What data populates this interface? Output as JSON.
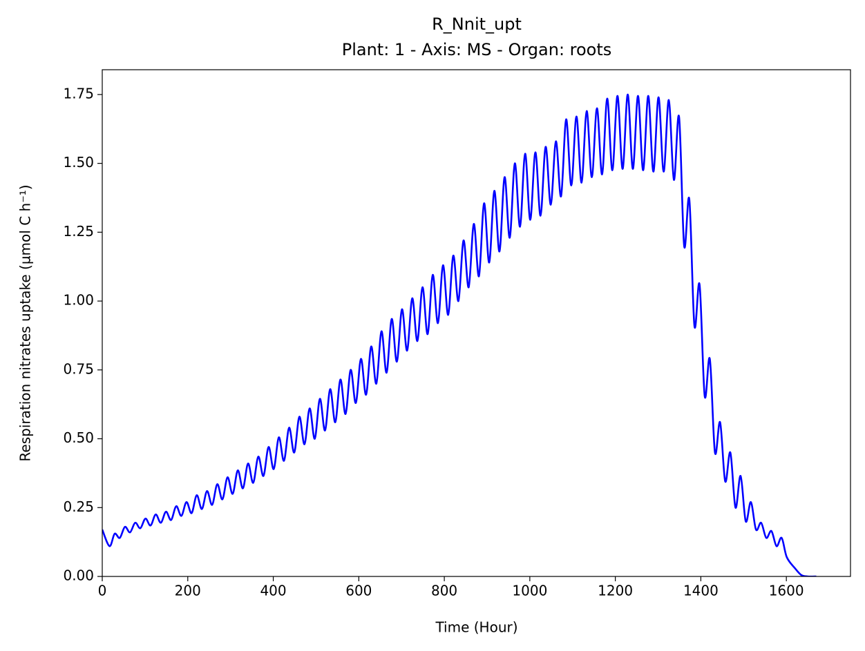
{
  "chart_data": {
    "type": "line",
    "title": "R_Nnit_upt",
    "subtitle": "Plant: 1 - Axis: MS - Organ: roots",
    "x_label": "Time (Hour)",
    "y_label": "Respiration nitrates uptake (µmol C h⁻¹)",
    "xlim": [
      0,
      1750
    ],
    "ylim": [
      0,
      1.84
    ],
    "xticks": [
      0,
      200,
      400,
      600,
      800,
      1000,
      1200,
      1400,
      1600
    ],
    "yticks": [
      {
        "value": 0,
        "label": "0.00"
      },
      {
        "value": 0.25,
        "label": "0.25"
      },
      {
        "value": 0.5,
        "label": "0.50"
      },
      {
        "value": 0.75,
        "label": "0.75"
      },
      {
        "value": 1,
        "label": "1.00"
      },
      {
        "value": 1.25,
        "label": "1.25"
      },
      {
        "value": 1.5,
        "label": "1.50"
      },
      {
        "value": 1.75,
        "label": "1.75"
      }
    ],
    "grid": false,
    "x": [
      0,
      17,
      29,
      41,
      53,
      65,
      77,
      89,
      101,
      113,
      125,
      137,
      149,
      161,
      173,
      185,
      197,
      209,
      221,
      233,
      245,
      257,
      269,
      281,
      293,
      305,
      317,
      329,
      341,
      353,
      365,
      377,
      389,
      401,
      413,
      425,
      437,
      449,
      461,
      473,
      485,
      497,
      509,
      521,
      533,
      545,
      557,
      569,
      581,
      593,
      605,
      617,
      629,
      641,
      653,
      665,
      677,
      689,
      701,
      713,
      725,
      737,
      749,
      761,
      773,
      785,
      797,
      809,
      821,
      833,
      845,
      857,
      869,
      881,
      893,
      905,
      917,
      929,
      941,
      953,
      965,
      977,
      989,
      1001,
      1013,
      1025,
      1037,
      1049,
      1061,
      1073,
      1085,
      1097,
      1109,
      1121,
      1133,
      1145,
      1157,
      1169,
      1181,
      1193,
      1205,
      1217,
      1229,
      1241,
      1253,
      1265,
      1277,
      1289,
      1301,
      1313,
      1325,
      1337,
      1349,
      1361,
      1373,
      1385,
      1397,
      1409,
      1421,
      1433,
      1445,
      1457,
      1469,
      1481,
      1493,
      1505,
      1517,
      1529,
      1541,
      1553,
      1565,
      1577,
      1589,
      1601,
      1620,
      1635,
      1650,
      1670
    ],
    "series": [
      {
        "name": "R_Nnit_upt",
        "color": "#0000ff",
        "values": [
          0.17,
          0.11,
          0.155,
          0.14,
          0.18,
          0.16,
          0.195,
          0.175,
          0.21,
          0.185,
          0.225,
          0.195,
          0.235,
          0.205,
          0.255,
          0.22,
          0.27,
          0.23,
          0.295,
          0.245,
          0.31,
          0.26,
          0.335,
          0.28,
          0.36,
          0.3,
          0.385,
          0.32,
          0.41,
          0.34,
          0.435,
          0.365,
          0.47,
          0.39,
          0.505,
          0.42,
          0.54,
          0.45,
          0.58,
          0.48,
          0.61,
          0.5,
          0.645,
          0.53,
          0.68,
          0.56,
          0.715,
          0.59,
          0.75,
          0.63,
          0.79,
          0.66,
          0.835,
          0.7,
          0.89,
          0.74,
          0.935,
          0.78,
          0.97,
          0.82,
          1.01,
          0.855,
          1.05,
          0.88,
          1.095,
          0.92,
          1.13,
          0.95,
          1.165,
          1.0,
          1.22,
          1.05,
          1.28,
          1.09,
          1.355,
          1.14,
          1.4,
          1.18,
          1.45,
          1.23,
          1.5,
          1.27,
          1.535,
          1.295,
          1.54,
          1.31,
          1.56,
          1.35,
          1.58,
          1.38,
          1.66,
          1.42,
          1.67,
          1.43,
          1.69,
          1.45,
          1.7,
          1.46,
          1.735,
          1.475,
          1.745,
          1.48,
          1.75,
          1.48,
          1.745,
          1.475,
          1.745,
          1.47,
          1.74,
          1.47,
          1.73,
          1.44,
          1.67,
          1.2,
          1.37,
          0.91,
          1.06,
          0.655,
          0.79,
          0.45,
          0.56,
          0.345,
          0.45,
          0.25,
          0.365,
          0.2,
          0.27,
          0.17,
          0.195,
          0.14,
          0.165,
          0.11,
          0.14,
          0.07,
          0.03,
          0.005,
          0,
          0
        ]
      }
    ]
  }
}
